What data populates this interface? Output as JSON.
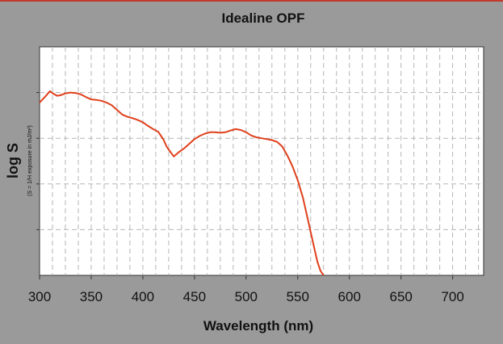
{
  "chart_data": {
    "type": "line",
    "title": "Idealine OPF",
    "ylabel": "log S",
    "ylabel_sub": "(S = 1/H exposure in mJ/m²)",
    "xlabel": "Wavelength (nm)",
    "xlim": [
      300,
      730
    ],
    "x_ticks": [
      "300",
      "350",
      "400",
      "450",
      "500",
      "550",
      "600",
      "650",
      "700"
    ],
    "y_gridlines": 5,
    "grid": true,
    "line_color": "#e0401c",
    "series": [
      {
        "x": [
          300,
          303,
          307,
          310,
          313,
          317,
          320,
          325,
          330,
          335,
          340,
          345,
          350,
          355,
          360,
          365,
          370,
          375,
          380,
          385,
          390,
          395,
          400,
          405,
          410,
          415,
          420,
          423,
          426,
          430,
          435,
          440,
          445,
          450,
          455,
          460,
          465,
          470,
          475,
          480,
          485,
          490,
          495,
          500,
          505,
          510,
          515,
          520,
          525,
          530,
          535,
          540,
          545,
          550,
          555,
          560,
          563,
          566,
          569,
          572,
          575
        ],
        "y": [
          3.78,
          3.85,
          3.95,
          4.03,
          3.98,
          3.93,
          3.94,
          3.98,
          4.0,
          3.99,
          3.96,
          3.9,
          3.85,
          3.84,
          3.82,
          3.78,
          3.72,
          3.62,
          3.52,
          3.47,
          3.44,
          3.4,
          3.35,
          3.27,
          3.2,
          3.14,
          2.97,
          2.82,
          2.72,
          2.6,
          2.7,
          2.78,
          2.88,
          2.98,
          3.05,
          3.1,
          3.13,
          3.13,
          3.12,
          3.13,
          3.17,
          3.2,
          3.18,
          3.13,
          3.06,
          3.02,
          3.0,
          2.98,
          2.96,
          2.92,
          2.82,
          2.62,
          2.38,
          2.08,
          1.7,
          1.2,
          0.9,
          0.6,
          0.3,
          0.1,
          0.0
        ]
      }
    ]
  }
}
